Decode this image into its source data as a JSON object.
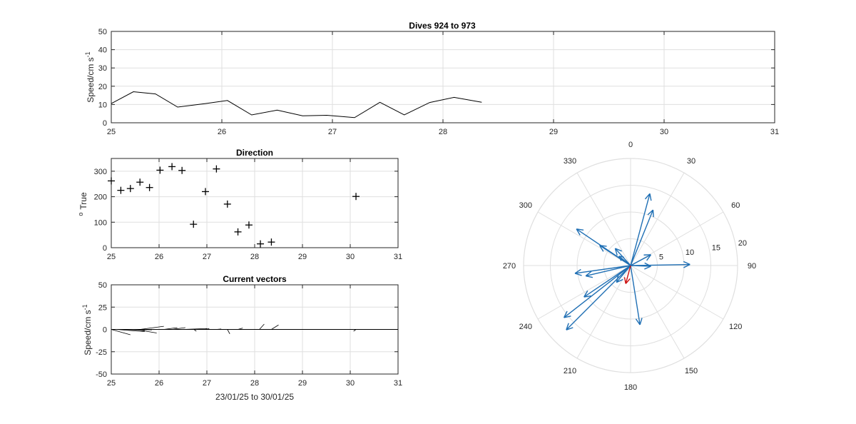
{
  "figure": {
    "background": "#ffffff",
    "axis_color": "#262626",
    "grid_color": "#dfdfdf",
    "line_color": "#000000",
    "vector_color": "#1f6fb4",
    "mean_vector_color": "#cc1111"
  },
  "chart_data": [
    {
      "type": "line",
      "title": "Dives 924 to 973",
      "ylabel": "Speed/cm s",
      "ylabel_superscript": "-1",
      "xlabel": "",
      "xlim": [
        25,
        31
      ],
      "ylim": [
        0,
        50
      ],
      "x_ticks": [
        25,
        26,
        27,
        28,
        29,
        30,
        31
      ],
      "y_ticks": [
        0,
        10,
        20,
        30,
        40,
        50
      ],
      "grid": true,
      "series": [
        {
          "x": [
            25.0,
            25.2,
            25.4,
            25.6,
            25.85,
            26.05,
            26.27,
            26.5,
            26.73,
            26.95,
            27.2,
            27.43,
            27.65,
            27.88,
            28.1,
            28.35
          ],
          "y": [
            10.5,
            17,
            15.8,
            8.6,
            10.5,
            12.2,
            4.3,
            6.9,
            3.8,
            4.1,
            2.8,
            11.2,
            4.3,
            11.1,
            13.9,
            11.2
          ]
        }
      ]
    },
    {
      "type": "scatter",
      "title": "Direction",
      "ylabel": "True",
      "ylabel_prefix": "o",
      "xlabel": "",
      "xlim": [
        25,
        31
      ],
      "ylim": [
        0,
        350
      ],
      "x_ticks": [
        25,
        26,
        27,
        28,
        29,
        30,
        31
      ],
      "y_ticks": [
        0,
        100,
        200,
        300
      ],
      "grid": true,
      "marker": "+",
      "series": [
        {
          "x": [
            25.0,
            25.2,
            25.4,
            25.6,
            25.8,
            26.02,
            26.27,
            26.48,
            26.72,
            26.97,
            27.2,
            27.43,
            27.65,
            27.88,
            28.12,
            28.35,
            30.12
          ],
          "y": [
            262,
            225,
            232,
            257,
            236,
            304,
            318,
            303,
            92,
            220,
            309,
            171,
            62,
            89,
            15,
            22,
            201
          ]
        }
      ]
    },
    {
      "type": "line",
      "title": "Current vectors",
      "ylabel": "Speed/cm s",
      "ylabel_superscript": "-1",
      "xlabel": "23/01/25 to 30/01/25",
      "xlim": [
        25,
        31
      ],
      "ylim": [
        -50,
        50
      ],
      "x_ticks": [
        25,
        26,
        27,
        28,
        29,
        30,
        31
      ],
      "y_ticks": [
        -50,
        -25,
        0,
        25,
        50
      ],
      "grid": true,
      "stick_vectors": [
        {
          "x": 25.0,
          "u": 0.4,
          "v": -6
        },
        {
          "x": 25.1,
          "u": 0.6,
          "v": -2.5
        },
        {
          "x": 25.2,
          "u": 0.5,
          "v": -1
        },
        {
          "x": 25.4,
          "u": 0.45,
          "v": -0.5
        },
        {
          "x": 25.5,
          "u": 0.45,
          "v": -4
        },
        {
          "x": 25.6,
          "u": 0.5,
          "v": 3.5
        },
        {
          "x": 26.1,
          "u": 0.28,
          "v": 2
        },
        {
          "x": 26.27,
          "u": 0.28,
          "v": 2
        },
        {
          "x": 26.5,
          "u": 0.5,
          "v": 1
        },
        {
          "x": 26.73,
          "u": 0.05,
          "v": -2
        },
        {
          "x": 26.95,
          "u": 0.1,
          "v": 1
        },
        {
          "x": 27.2,
          "u": 0.1,
          "v": 0.5
        },
        {
          "x": 27.43,
          "u": 0.05,
          "v": -5
        },
        {
          "x": 27.65,
          "u": 0.1,
          "v": 1.5
        },
        {
          "x": 28.1,
          "u": 0.1,
          "v": 6
        },
        {
          "x": 28.35,
          "u": 0.15,
          "v": 5
        },
        {
          "x": 30.12,
          "u": -0.05,
          "v": -2
        }
      ]
    },
    {
      "type": "polar",
      "title": "",
      "theta_ticks": [
        0,
        30,
        60,
        90,
        120,
        150,
        180,
        210,
        240,
        270,
        300,
        330
      ],
      "r_ticks": [
        5,
        10,
        15,
        20
      ],
      "rlim": [
        0,
        20
      ],
      "grid": true,
      "vectors": [
        {
          "dir": 262,
          "speed": 10.5
        },
        {
          "dir": 225,
          "speed": 17
        },
        {
          "dir": 232,
          "speed": 15.8
        },
        {
          "dir": 257,
          "speed": 8.6
        },
        {
          "dir": 236,
          "speed": 10.5
        },
        {
          "dir": 304,
          "speed": 12.2
        },
        {
          "dir": 318,
          "speed": 4.3
        },
        {
          "dir": 303,
          "speed": 6.9
        },
        {
          "dir": 92,
          "speed": 3.8
        },
        {
          "dir": 220,
          "speed": 4.1
        },
        {
          "dir": 309,
          "speed": 2.8
        },
        {
          "dir": 171,
          "speed": 11.2
        },
        {
          "dir": 62,
          "speed": 4.3
        },
        {
          "dir": 89,
          "speed": 11.1
        },
        {
          "dir": 15,
          "speed": 13.9
        },
        {
          "dir": 22,
          "speed": 11.2
        },
        {
          "dir": 201,
          "speed": 0
        }
      ],
      "mean_vector": {
        "dir": 195,
        "speed": 3.5
      }
    }
  ]
}
